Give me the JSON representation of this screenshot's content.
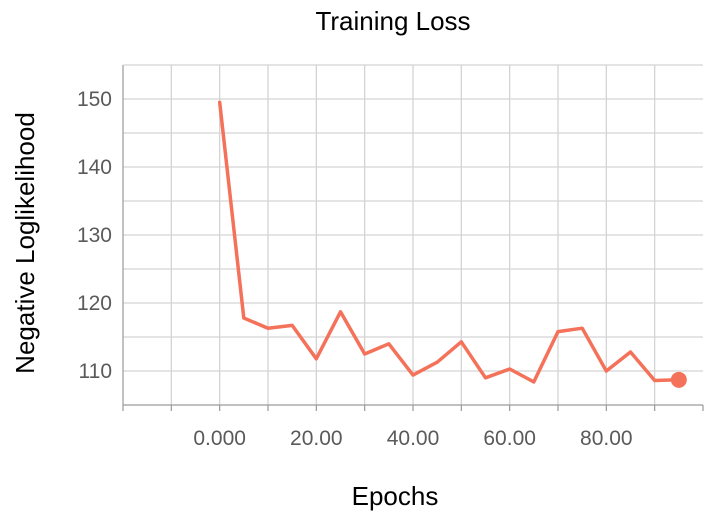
{
  "chart_data": {
    "type": "line",
    "title": "Training Loss",
    "xlabel": "Epochs",
    "ylabel": "Negative Loglikelihood",
    "x_ticks": [
      {
        "value": 0,
        "label": "0.000"
      },
      {
        "value": 20,
        "label": "20.00"
      },
      {
        "value": 40,
        "label": "40.00"
      },
      {
        "value": 60,
        "label": "60.00"
      },
      {
        "value": 80,
        "label": "80.00"
      }
    ],
    "y_ticks": [
      {
        "value": 110,
        "label": "110"
      },
      {
        "value": 120,
        "label": "120"
      },
      {
        "value": 130,
        "label": "130"
      },
      {
        "value": 140,
        "label": "140"
      },
      {
        "value": 150,
        "label": "150"
      }
    ],
    "xlim": [
      -20,
      100
    ],
    "ylim": [
      105,
      155
    ],
    "grid": true,
    "series": [
      {
        "color": "#f4725a",
        "x": [
          0,
          5,
          10,
          15,
          20,
          25,
          30,
          35,
          40,
          45,
          50,
          55,
          60,
          65,
          70,
          75,
          80,
          85,
          90,
          95
        ],
        "y": [
          149.5,
          117.8,
          116.3,
          116.7,
          111.8,
          118.7,
          112.5,
          114.0,
          109.4,
          111.3,
          114.3,
          109.0,
          110.3,
          108.4,
          115.8,
          116.3,
          110.0,
          112.8,
          108.6,
          108.7
        ],
        "highlight_last": true
      }
    ]
  }
}
